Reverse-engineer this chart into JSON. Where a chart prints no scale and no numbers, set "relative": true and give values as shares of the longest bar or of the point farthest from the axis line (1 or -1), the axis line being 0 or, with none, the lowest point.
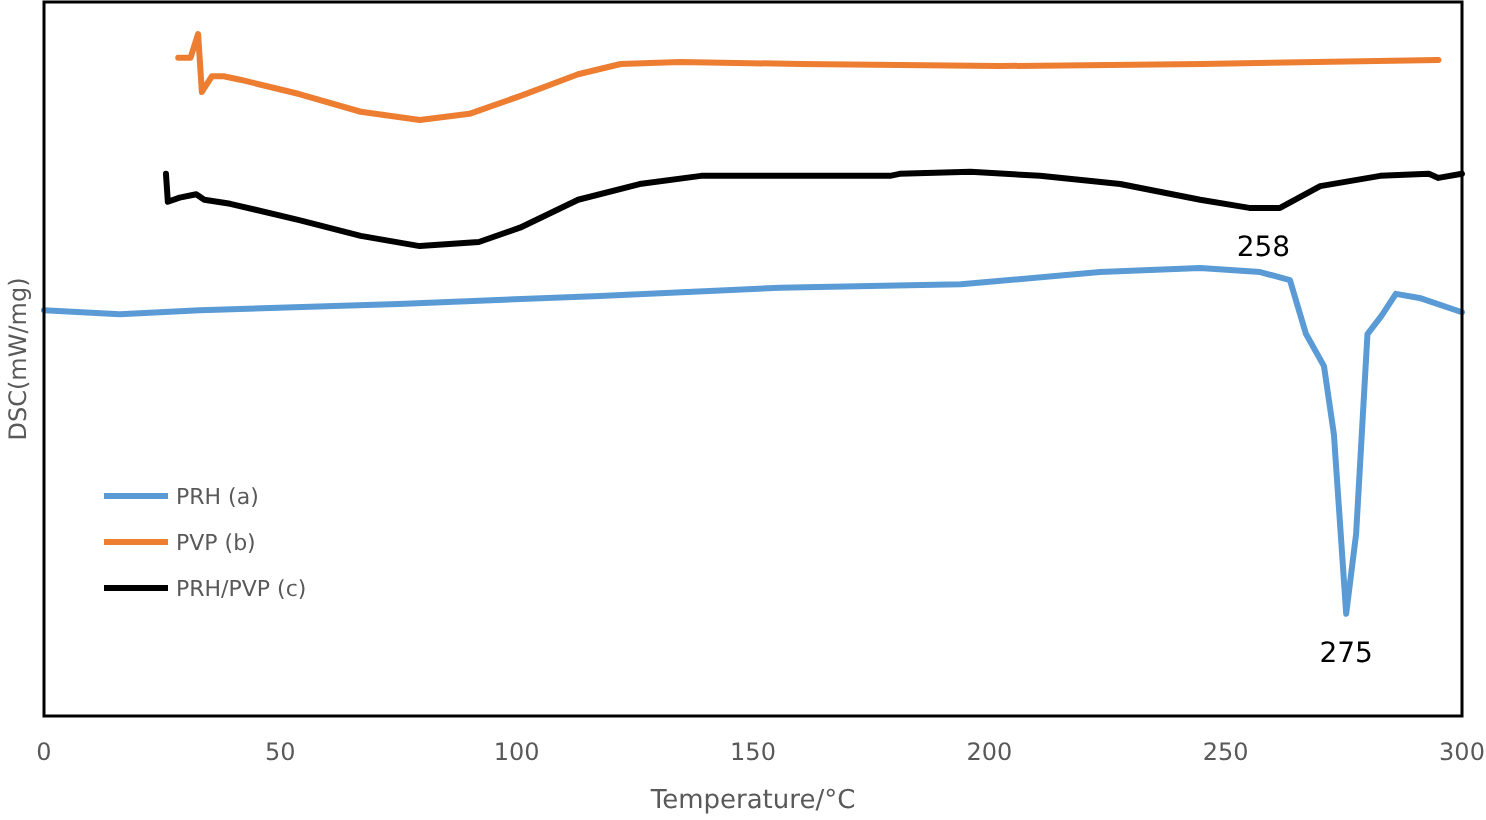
{
  "chart_data": {
    "type": "line",
    "relative": true,
    "xlabel": "Temperature/°C",
    "ylabel": "DSC(mW/mg)",
    "xlim": [
      0,
      300
    ],
    "xticks": [
      0,
      50,
      100,
      150,
      200,
      250,
      300
    ],
    "grid": false,
    "legend": "left",
    "marker": "none",
    "line_style": "solid",
    "annotations": [
      {
        "text": "258",
        "x": 258,
        "y": 0.745
      },
      {
        "text": "275",
        "x": 275.5,
        "y": 0.15
      }
    ],
    "series": [
      {
        "name": "PRH (a)",
        "color": "#5b9bd5",
        "x": [
          0,
          16,
          33,
          75,
          117.6,
          155.7,
          194,
          223.4,
          244.6,
          257.3,
          263.6,
          267,
          270.8,
          272.9,
          275.5,
          277.6,
          280,
          283,
          286,
          291,
          300
        ],
        "values": [
          0.595,
          0.589,
          0.595,
          0.604,
          0.616,
          0.628,
          0.633,
          0.651,
          0.657,
          0.651,
          0.639,
          0.56,
          0.513,
          0.413,
          0.15,
          0.267,
          0.56,
          0.587,
          0.619,
          0.613,
          0.592
        ]
      },
      {
        "name": "PVP (b)",
        "color": "#ed7d31",
        "x": [
          28.4,
          31,
          32.6,
          33.4,
          35.5,
          38,
          41.5,
          54,
          67,
          79.5,
          90,
          100.7,
          113,
          122,
          134.6,
          160,
          202,
          245,
          295
        ],
        "values": [
          0.965,
          0.965,
          1.0,
          0.915,
          0.938,
          0.938,
          0.933,
          0.912,
          0.886,
          0.874,
          0.883,
          0.909,
          0.941,
          0.956,
          0.959,
          0.956,
          0.953,
          0.956,
          0.962
        ]
      },
      {
        "name": "PRH/PVP (c)",
        "color": "#000000",
        "x": [
          25.8,
          26.2,
          28.7,
          32.2,
          33.9,
          39.4,
          54,
          67,
          79.5,
          92,
          100.7,
          113,
          126,
          139,
          160,
          179,
          181,
          196,
          210.7,
          227.7,
          244.6,
          255,
          261.5,
          270,
          282.7,
          293,
          295,
          300
        ],
        "values": [
          0.795,
          0.754,
          0.76,
          0.765,
          0.757,
          0.751,
          0.727,
          0.704,
          0.689,
          0.695,
          0.716,
          0.757,
          0.78,
          0.792,
          0.792,
          0.792,
          0.795,
          0.798,
          0.792,
          0.78,
          0.757,
          0.745,
          0.745,
          0.777,
          0.792,
          0.795,
          0.789,
          0.795
        ]
      }
    ]
  }
}
